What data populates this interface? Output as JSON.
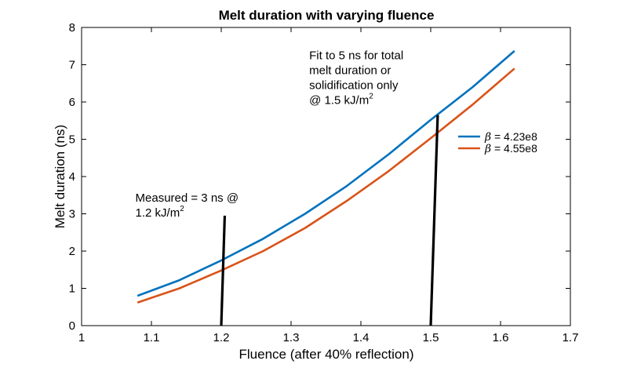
{
  "chart_data": {
    "type": "line",
    "title": "Melt duration with varying fluence",
    "xlabel": "Fluence  (after 40% reflection)",
    "ylabel": "Melt duration (ns)",
    "xlim": [
      1,
      1.7
    ],
    "ylim": [
      0,
      8
    ],
    "xticks": [
      1,
      1.1,
      1.2,
      1.3,
      1.4,
      1.5,
      1.6,
      1.7
    ],
    "xtick_labels": [
      "1",
      "1.1",
      "1.2",
      "1.3",
      "1.4",
      "1.5",
      "1.6",
      "1.7"
    ],
    "yticks": [
      0,
      1,
      2,
      3,
      4,
      5,
      6,
      7,
      8
    ],
    "ytick_labels": [
      "0",
      "1",
      "2",
      "3",
      "4",
      "5",
      "6",
      "7",
      "8"
    ],
    "grid": false,
    "legend_position": "right",
    "series": [
      {
        "name_prefix": "β",
        "name_suffix": " = 4.23e8",
        "color": "#0072BD",
        "x": [
          1.08,
          1.14,
          1.2,
          1.26,
          1.32,
          1.38,
          1.44,
          1.5,
          1.56,
          1.62
        ],
        "y": [
          0.8,
          1.22,
          1.75,
          2.33,
          3.0,
          3.75,
          4.6,
          5.52,
          6.4,
          7.37
        ]
      },
      {
        "name_prefix": "β",
        "name_suffix": " = 4.55e8",
        "color": "#D95319",
        "x": [
          1.08,
          1.14,
          1.2,
          1.26,
          1.32,
          1.38,
          1.44,
          1.5,
          1.56,
          1.62
        ],
        "y": [
          0.62,
          1.0,
          1.48,
          2.0,
          2.62,
          3.35,
          4.15,
          5.03,
          5.93,
          6.9
        ]
      }
    ],
    "markers": [
      {
        "x1": 1.2,
        "y1": 0,
        "x2": 1.205,
        "y2": 2.95,
        "color": "#000000"
      },
      {
        "x1": 1.5,
        "y1": 0,
        "x2": 1.51,
        "y2": 5.65,
        "color": "#000000"
      }
    ],
    "annotations": [
      {
        "lines": [
          "Measured = 3 ns @",
          "1.2 kJ/m"
        ],
        "superscript": "2",
        "x": 1.077,
        "y": 3.33
      },
      {
        "lines": [
          "Fit to 5 ns for total",
          "melt duration or",
          "solidification only",
          "@ 1.5 kJ/m"
        ],
        "superscript": "2",
        "x": 1.326,
        "y": 7.15
      }
    ]
  }
}
